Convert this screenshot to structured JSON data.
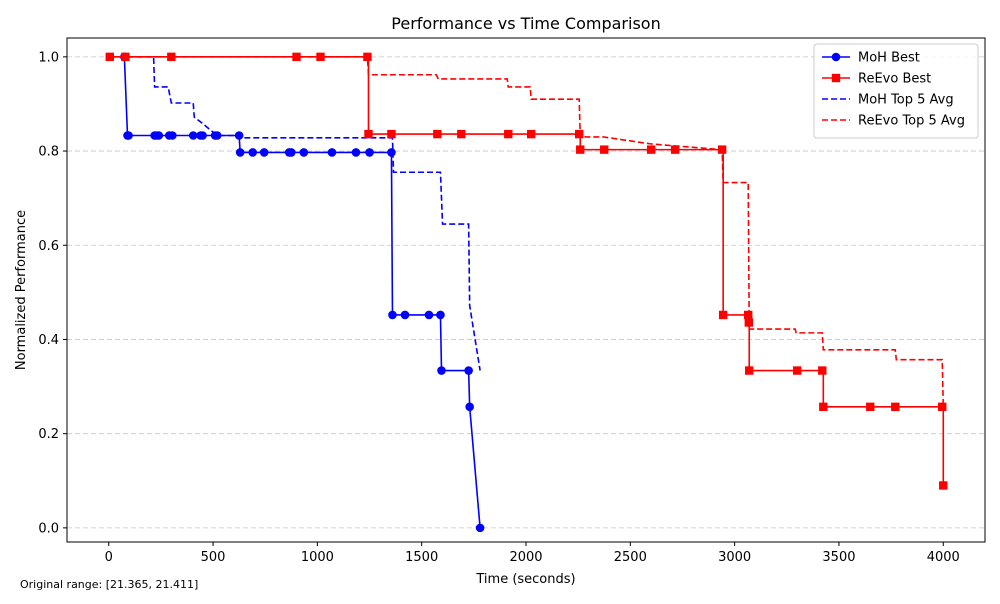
{
  "chart_data": {
    "type": "line",
    "title": "Performance vs Time Comparison",
    "xlabel": "Time (seconds)",
    "ylabel": "Normalized Performance",
    "xlim": [
      -200,
      4200
    ],
    "ylim": [
      -0.03,
      1.04
    ],
    "xticks": [
      0,
      500,
      1000,
      1500,
      2000,
      2500,
      3000,
      3500,
      4000
    ],
    "xtick_labels": [
      "0",
      "500",
      "1000",
      "1500",
      "2000",
      "2500",
      "3000",
      "3500",
      "4000"
    ],
    "yticks": [
      0.0,
      0.2,
      0.4,
      0.6,
      0.8,
      1.0
    ],
    "ytick_labels": [
      "0.0",
      "0.2",
      "0.4",
      "0.6",
      "0.8",
      "1.0"
    ],
    "grid": "y-dashed",
    "legend_position": "top-right",
    "footnote": "Original range: [21.365, 21.411]",
    "series": [
      {
        "name": "MoH Best",
        "color": "#0000ff",
        "style": "solid",
        "marker": "circle",
        "drawstyle": "line",
        "points": [
          [
            75,
            1.0
          ],
          [
            90,
            0.833
          ],
          [
            95,
            0.833
          ],
          [
            220,
            0.833
          ],
          [
            230,
            0.833
          ],
          [
            240,
            0.833
          ],
          [
            290,
            0.833
          ],
          [
            305,
            0.833
          ],
          [
            405,
            0.833
          ],
          [
            440,
            0.833
          ],
          [
            450,
            0.833
          ],
          [
            510,
            0.833
          ],
          [
            520,
            0.833
          ],
          [
            625,
            0.833
          ],
          [
            630,
            0.797
          ],
          [
            690,
            0.797
          ],
          [
            745,
            0.797
          ],
          [
            865,
            0.797
          ],
          [
            875,
            0.797
          ],
          [
            935,
            0.797
          ],
          [
            1070,
            0.797
          ],
          [
            1185,
            0.797
          ],
          [
            1250,
            0.797
          ],
          [
            1355,
            0.797
          ],
          [
            1360,
            0.452
          ],
          [
            1420,
            0.452
          ],
          [
            1535,
            0.452
          ],
          [
            1590,
            0.452
          ],
          [
            1595,
            0.334
          ],
          [
            1725,
            0.334
          ],
          [
            1730,
            0.257
          ],
          [
            1780,
            0.0
          ]
        ]
      },
      {
        "name": "ReEvo Best",
        "color": "#ff0000",
        "style": "solid",
        "marker": "square",
        "drawstyle": "steps-post",
        "points": [
          [
            5,
            1.0
          ],
          [
            80,
            1.0
          ],
          [
            300,
            1.0
          ],
          [
            900,
            1.0
          ],
          [
            1015,
            1.0
          ],
          [
            1240,
            1.0
          ],
          [
            1245,
            0.836
          ],
          [
            1355,
            0.836
          ],
          [
            1575,
            0.836
          ],
          [
            1690,
            0.836
          ],
          [
            1915,
            0.836
          ],
          [
            2025,
            0.836
          ],
          [
            2255,
            0.836
          ],
          [
            2260,
            0.803
          ],
          [
            2375,
            0.803
          ],
          [
            2600,
            0.803
          ],
          [
            2715,
            0.803
          ],
          [
            2940,
            0.803
          ],
          [
            2945,
            0.452
          ],
          [
            3065,
            0.452
          ],
          [
            3068,
            0.436
          ],
          [
            3070,
            0.334
          ],
          [
            3300,
            0.334
          ],
          [
            3420,
            0.334
          ],
          [
            3425,
            0.257
          ],
          [
            3650,
            0.257
          ],
          [
            3770,
            0.257
          ],
          [
            3995,
            0.257
          ],
          [
            4000,
            0.09
          ]
        ]
      },
      {
        "name": "MoH Top 5 Avg",
        "color": "#0000ff",
        "style": "dashed",
        "marker": "none",
        "drawstyle": "line",
        "points": [
          [
            5,
            1.0
          ],
          [
            75,
            1.0
          ],
          [
            215,
            1.0
          ],
          [
            220,
            0.936
          ],
          [
            285,
            0.936
          ],
          [
            300,
            0.902
          ],
          [
            405,
            0.902
          ],
          [
            410,
            0.872
          ],
          [
            440,
            0.862
          ],
          [
            520,
            0.833
          ],
          [
            625,
            0.833
          ],
          [
            630,
            0.828
          ],
          [
            1360,
            0.828
          ],
          [
            1365,
            0.755
          ],
          [
            1590,
            0.755
          ],
          [
            1600,
            0.645
          ],
          [
            1725,
            0.645
          ],
          [
            1730,
            0.472
          ],
          [
            1780,
            0.334
          ]
        ]
      },
      {
        "name": "ReEvo Top 5 Avg",
        "color": "#ff0000",
        "style": "dashed",
        "marker": "none",
        "drawstyle": "line",
        "points": [
          [
            5,
            1.0
          ],
          [
            1240,
            1.0
          ],
          [
            1245,
            0.962
          ],
          [
            1570,
            0.962
          ],
          [
            1580,
            0.953
          ],
          [
            1910,
            0.953
          ],
          [
            1915,
            0.936
          ],
          [
            2020,
            0.936
          ],
          [
            2025,
            0.91
          ],
          [
            2255,
            0.91
          ],
          [
            2260,
            0.83
          ],
          [
            2370,
            0.83
          ],
          [
            2600,
            0.815
          ],
          [
            2940,
            0.803
          ],
          [
            2945,
            0.733
          ],
          [
            3065,
            0.733
          ],
          [
            3070,
            0.422
          ],
          [
            3290,
            0.422
          ],
          [
            3295,
            0.414
          ],
          [
            3420,
            0.414
          ],
          [
            3425,
            0.378
          ],
          [
            3770,
            0.378
          ],
          [
            3775,
            0.357
          ],
          [
            3995,
            0.357
          ],
          [
            4000,
            0.257
          ]
        ]
      }
    ]
  }
}
